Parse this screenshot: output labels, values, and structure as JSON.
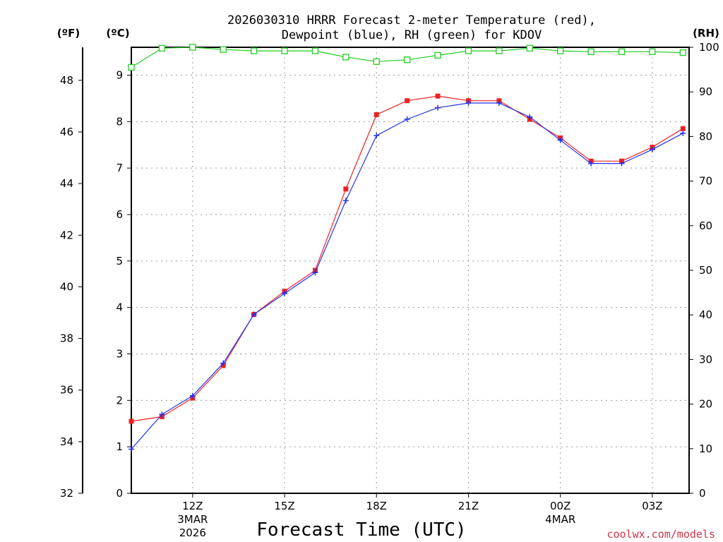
{
  "chart_data": {
    "type": "line",
    "title_line1": "2026030310 HRRR Forecast 2-meter Temperature (red),",
    "title_line2": "Dewpoint (blue), RH (green) for KDOV",
    "xlabel": "Forecast Time (UTC)",
    "credit": "coolwx.com/models",
    "units": {
      "fahrenheit": "(ºF)",
      "celsius": "(ºC)",
      "rh": "(RH)"
    },
    "x_hours": [
      0,
      1,
      2,
      3,
      4,
      5,
      6,
      7,
      8,
      9,
      10,
      11,
      12,
      13,
      14,
      15,
      16,
      17,
      18
    ],
    "xlim": [
      0,
      18.2
    ],
    "x_ticks": [
      {
        "hour": 2,
        "label": "12Z",
        "sub1": "3MAR",
        "sub2": "2026"
      },
      {
        "hour": 5,
        "label": "15Z",
        "sub1": "",
        "sub2": ""
      },
      {
        "hour": 8,
        "label": "18Z",
        "sub1": "",
        "sub2": ""
      },
      {
        "hour": 11,
        "label": "21Z",
        "sub1": "",
        "sub2": ""
      },
      {
        "hour": 14,
        "label": "00Z",
        "sub1": "4MAR",
        "sub2": ""
      },
      {
        "hour": 17,
        "label": "03Z",
        "sub1": "",
        "sub2": ""
      }
    ],
    "y_celsius": {
      "min": 0,
      "max": 9.6,
      "ticks": [
        0,
        1,
        2,
        3,
        4,
        5,
        6,
        7,
        8,
        9
      ]
    },
    "y_fahrenheit": {
      "min": 32,
      "max": 49.28,
      "ticks": [
        32,
        34,
        36,
        38,
        40,
        42,
        44,
        46,
        48
      ]
    },
    "y_rh": {
      "min": 0,
      "max": 100,
      "ticks": [
        0,
        10,
        20,
        30,
        40,
        50,
        60,
        70,
        80,
        90,
        100
      ]
    },
    "series": [
      {
        "name": "Temperature",
        "unit": "C",
        "color": "#ee2222",
        "marker": "filled-square",
        "values": [
          1.55,
          1.65,
          2.05,
          2.75,
          3.85,
          4.35,
          4.8,
          6.55,
          8.15,
          8.45,
          8.55,
          8.45,
          8.45,
          8.05,
          7.65,
          7.15,
          7.15,
          7.45,
          7.85
        ]
      },
      {
        "name": "Dewpoint",
        "unit": "C",
        "color": "#2233ee",
        "marker": "plus",
        "values": [
          0.95,
          1.7,
          2.1,
          2.8,
          3.85,
          4.3,
          4.75,
          6.3,
          7.7,
          8.05,
          8.3,
          8.4,
          8.4,
          8.1,
          7.6,
          7.1,
          7.1,
          7.4,
          7.75
        ]
      },
      {
        "name": "RH",
        "unit": "%",
        "color": "#22cc22",
        "marker": "open-square",
        "values": [
          95.5,
          99.8,
          100,
          99.5,
          99.2,
          99.2,
          99.2,
          97.8,
          96.8,
          97.2,
          98.2,
          99.2,
          99.2,
          99.8,
          99.2,
          99.0,
          99.0,
          99.0,
          98.8
        ]
      }
    ]
  }
}
